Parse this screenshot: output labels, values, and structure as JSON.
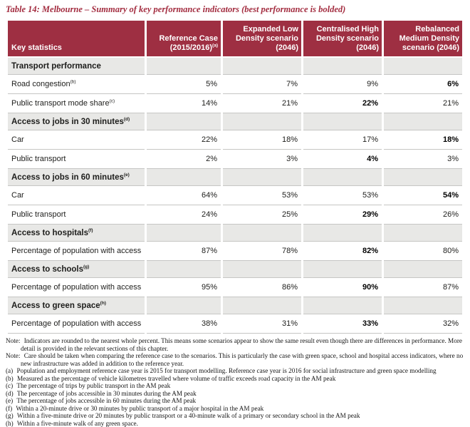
{
  "title": "Table 14: Melbourne – Summary of key performance indicators (best performance is bolded)",
  "colors": {
    "header_bg": "#9E2F42",
    "title_text": "#A32D40",
    "section_bg": "#E8E8E6",
    "row_border": "#C6C6C4"
  },
  "table": {
    "columns": [
      {
        "lines": [
          "Key statistics"
        ],
        "sup": ""
      },
      {
        "lines": [
          "Reference Case",
          "(2015/2016)"
        ],
        "sup": "(a)"
      },
      {
        "lines": [
          "Expanded Low",
          "Density scenario",
          "(2046)"
        ],
        "sup": ""
      },
      {
        "lines": [
          "Centralised High",
          "Density scenario",
          "(2046)"
        ],
        "sup": ""
      },
      {
        "lines": [
          "Rebalanced",
          "Medium Density",
          "scenario (2046)"
        ],
        "sup": ""
      }
    ],
    "rows": [
      {
        "type": "section",
        "label": "Transport performance",
        "sup": ""
      },
      {
        "type": "data",
        "label": "Road congestion",
        "sup": "(b)",
        "values": [
          "5%",
          "7%",
          "9%",
          "6%"
        ],
        "bold": 3
      },
      {
        "type": "data",
        "label": "Public transport mode share",
        "sup": "(c)",
        "values": [
          "14%",
          "21%",
          "22%",
          "21%"
        ],
        "bold": 2
      },
      {
        "type": "section",
        "label": "Access to jobs in 30 minutes",
        "sup": "(d)"
      },
      {
        "type": "data",
        "label": "Car",
        "sup": "",
        "values": [
          "22%",
          "18%",
          "17%",
          "18%"
        ],
        "bold": 3
      },
      {
        "type": "data",
        "label": "Public transport",
        "sup": "",
        "values": [
          "2%",
          "3%",
          "4%",
          "3%"
        ],
        "bold": 2
      },
      {
        "type": "section",
        "label": "Access to jobs in 60 minutes",
        "sup": "(e)"
      },
      {
        "type": "data",
        "label": "Car",
        "sup": "",
        "values": [
          "64%",
          "53%",
          "53%",
          "54%"
        ],
        "bold": 3
      },
      {
        "type": "data",
        "label": "Public transport",
        "sup": "",
        "values": [
          "24%",
          "25%",
          "29%",
          "26%"
        ],
        "bold": 2
      },
      {
        "type": "section",
        "label": "Access to hospitals",
        "sup": "(f)"
      },
      {
        "type": "data",
        "label": "Percentage of population with access",
        "sup": "",
        "values": [
          "87%",
          "78%",
          "82%",
          "80%"
        ],
        "bold": 2
      },
      {
        "type": "section",
        "label": "Access to schools",
        "sup": "(g)"
      },
      {
        "type": "data",
        "label": "Percentage of population with access",
        "sup": "",
        "values": [
          "95%",
          "86%",
          "90%",
          "87%"
        ],
        "bold": 2
      },
      {
        "type": "section",
        "label": "Access to green space",
        "sup": "(h)"
      },
      {
        "type": "data",
        "label": "Percentage of population with access",
        "sup": "",
        "values": [
          "38%",
          "31%",
          "33%",
          "32%"
        ],
        "bold": 2
      }
    ]
  },
  "notes": [
    {
      "label": "Note:",
      "text": "Indicators are rounded to the nearest whole percent. This means some scenarios appear to show the same result even though there are differences in performance. More detail is provided in the relevant sections of this chapter."
    },
    {
      "label": "Note:",
      "text": "Care should be taken when comparing the reference case to the scenarios. This is particularly the case with green space, school and hospital access indicators, where no new infrastructure was added in addition to the reference year."
    },
    {
      "label": "(a)",
      "text": "Population and employment reference case year is 2015 for transport modelling. Reference case year is 2016 for social infrastructure and green space modelling"
    },
    {
      "label": "(b)",
      "text": "Measured as the percentage of vehicle kilometres travelled where volume of traffic exceeds road capacity in the AM peak"
    },
    {
      "label": "(c)",
      "text": "The percentage of trips by public transport in the AM peak"
    },
    {
      "label": "(d)",
      "text": "The percentage of jobs accessible in 30 minutes during the AM peak"
    },
    {
      "label": "(e)",
      "text": "The percentage of jobs accessible in 60 minutes during the AM peak"
    },
    {
      "label": "(f)",
      "text": "Within a 20-minute drive or 30 minutes by public transport of a major hospital in the AM peak"
    },
    {
      "label": "(g)",
      "text": "Within a five-minute drive or 20 minutes by public transport or a 40-minute walk of a primary or secondary school in the AM peak"
    },
    {
      "label": "(h)",
      "text": "Within a five-minute walk of any green space."
    }
  ]
}
